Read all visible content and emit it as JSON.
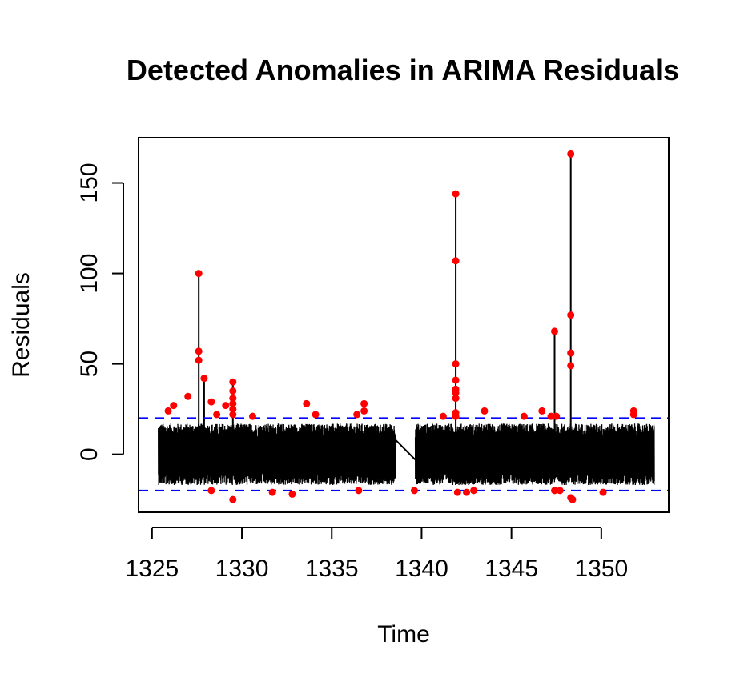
{
  "chart_data": {
    "type": "line",
    "title": "Detected Anomalies in ARIMA Residuals",
    "xlabel": "Time",
    "ylabel": "Residuals",
    "xlim": [
      1324.25,
      1353.75
    ],
    "ylim": [
      -32,
      175
    ],
    "x_ticks": [
      1325,
      1330,
      1335,
      1340,
      1345,
      1350
    ],
    "x_tick_labels": [
      "1325",
      "1330",
      "1335",
      "1340",
      "1345",
      "1350"
    ],
    "y_ticks": [
      0,
      50,
      100,
      150
    ],
    "y_tick_labels": [
      "0",
      "50",
      "100",
      "150"
    ],
    "thresholds": [
      20,
      -20
    ],
    "colors": {
      "series": "#000000",
      "anomaly": "#ff0000",
      "threshold": "#0000ff"
    },
    "segments": [
      {
        "name": "residuals-segment-1",
        "x_start": 1325.35,
        "x_end": 1338.55,
        "amplitude": 17
      },
      {
        "name": "residuals-segment-2",
        "x_start": 1339.65,
        "x_end": 1352.95,
        "amplitude": 17
      }
    ],
    "gap_connector": {
      "from": [
        1338.55,
        8
      ],
      "to": [
        1339.65,
        -3
      ]
    },
    "spikes": [
      {
        "x": 1327.6,
        "y": 100
      },
      {
        "x": 1327.9,
        "y": 42
      },
      {
        "x": 1329.5,
        "y": 40
      },
      {
        "x": 1341.9,
        "y": 144
      },
      {
        "x": 1347.4,
        "y": 68
      },
      {
        "x": 1348.3,
        "y": 166
      }
    ],
    "anomalies": [
      {
        "x": 1325.9,
        "y": 24
      },
      {
        "x": 1326.2,
        "y": 27
      },
      {
        "x": 1327.0,
        "y": 32
      },
      {
        "x": 1327.6,
        "y": 100
      },
      {
        "x": 1327.6,
        "y": 57
      },
      {
        "x": 1327.6,
        "y": 52
      },
      {
        "x": 1327.9,
        "y": 42
      },
      {
        "x": 1328.3,
        "y": 29
      },
      {
        "x": 1328.6,
        "y": 22
      },
      {
        "x": 1328.3,
        "y": -20
      },
      {
        "x": 1329.1,
        "y": 27
      },
      {
        "x": 1329.5,
        "y": 40
      },
      {
        "x": 1329.5,
        "y": 35
      },
      {
        "x": 1329.5,
        "y": 31
      },
      {
        "x": 1329.5,
        "y": 28
      },
      {
        "x": 1329.5,
        "y": 25
      },
      {
        "x": 1329.5,
        "y": 22
      },
      {
        "x": 1329.5,
        "y": -25
      },
      {
        "x": 1330.6,
        "y": 21
      },
      {
        "x": 1331.7,
        "y": -21
      },
      {
        "x": 1332.8,
        "y": -22
      },
      {
        "x": 1333.6,
        "y": 28
      },
      {
        "x": 1334.1,
        "y": 22
      },
      {
        "x": 1336.4,
        "y": 22
      },
      {
        "x": 1336.5,
        "y": -20
      },
      {
        "x": 1336.8,
        "y": 28
      },
      {
        "x": 1336.8,
        "y": 24
      },
      {
        "x": 1339.6,
        "y": -20
      },
      {
        "x": 1341.2,
        "y": 21
      },
      {
        "x": 1341.9,
        "y": 144
      },
      {
        "x": 1341.9,
        "y": 107
      },
      {
        "x": 1341.9,
        "y": 50
      },
      {
        "x": 1341.9,
        "y": 41
      },
      {
        "x": 1341.9,
        "y": 36
      },
      {
        "x": 1341.9,
        "y": 34
      },
      {
        "x": 1341.9,
        "y": 31
      },
      {
        "x": 1341.9,
        "y": 23
      },
      {
        "x": 1341.9,
        "y": 21
      },
      {
        "x": 1342.0,
        "y": -21
      },
      {
        "x": 1342.5,
        "y": -21
      },
      {
        "x": 1342.9,
        "y": -20
      },
      {
        "x": 1343.5,
        "y": 24
      },
      {
        "x": 1345.7,
        "y": 21
      },
      {
        "x": 1346.7,
        "y": 24
      },
      {
        "x": 1347.2,
        "y": 21
      },
      {
        "x": 1347.4,
        "y": 68
      },
      {
        "x": 1347.5,
        "y": 21
      },
      {
        "x": 1347.4,
        "y": -20
      },
      {
        "x": 1347.7,
        "y": -20
      },
      {
        "x": 1348.3,
        "y": 166
      },
      {
        "x": 1348.3,
        "y": 77
      },
      {
        "x": 1348.3,
        "y": 56
      },
      {
        "x": 1348.3,
        "y": 49
      },
      {
        "x": 1348.3,
        "y": -24
      },
      {
        "x": 1348.4,
        "y": -25
      },
      {
        "x": 1350.1,
        "y": -21
      },
      {
        "x": 1351.8,
        "y": 24
      },
      {
        "x": 1351.8,
        "y": 22
      }
    ]
  }
}
